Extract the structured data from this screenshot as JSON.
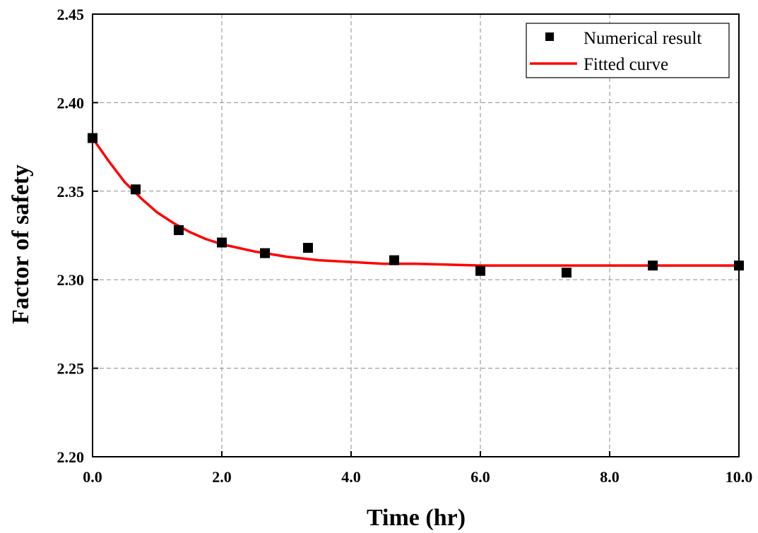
{
  "chart_data": {
    "type": "scatter",
    "xlabel": "Time (hr)",
    "ylabel": "Factor of safety",
    "xlim": [
      0,
      10
    ],
    "ylim": [
      2.2,
      2.45
    ],
    "x_ticks": [
      "0.0",
      "2.0",
      "4.0",
      "6.0",
      "8.0",
      "10.0"
    ],
    "x_tick_values": [
      0,
      2,
      4,
      6,
      8,
      10
    ],
    "y_ticks": [
      "2.20",
      "2.25",
      "2.30",
      "2.35",
      "2.40",
      "2.45"
    ],
    "y_tick_values": [
      2.2,
      2.25,
      2.3,
      2.35,
      2.4,
      2.45
    ],
    "grid": true,
    "legend_position": "top-right",
    "series": [
      {
        "name": "Numerical result",
        "kind": "scatter",
        "marker": "square",
        "color": "#000000",
        "x": [
          0,
          0.667,
          1.333,
          2.0,
          2.667,
          3.333,
          4.667,
          6.0,
          7.333,
          8.667,
          10.0
        ],
        "y": [
          2.38,
          2.351,
          2.328,
          2.321,
          2.315,
          2.318,
          2.311,
          2.305,
          2.304,
          2.308,
          2.308
        ]
      },
      {
        "name": "Fitted curve",
        "kind": "line",
        "color": "#ff0000",
        "x": [
          0,
          0.25,
          0.5,
          0.75,
          1.0,
          1.25,
          1.5,
          1.75,
          2.0,
          2.5,
          3.0,
          3.5,
          4.0,
          4.5,
          5.0,
          6.0,
          7.0,
          8.0,
          9.0,
          10.0
        ],
        "y": [
          2.38,
          2.367,
          2.355,
          2.346,
          2.338,
          2.332,
          2.327,
          2.323,
          2.32,
          2.316,
          2.313,
          2.311,
          2.31,
          2.309,
          2.309,
          2.308,
          2.308,
          2.308,
          2.308,
          2.308
        ]
      }
    ]
  }
}
